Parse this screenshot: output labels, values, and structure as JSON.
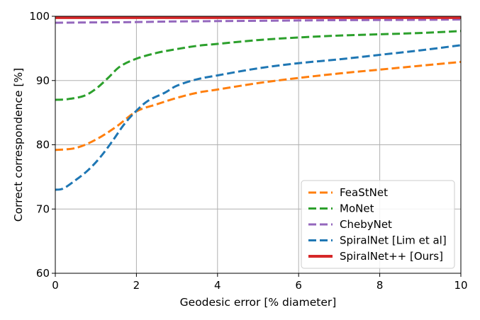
{
  "chart_data": {
    "type": "line",
    "xlabel": "Geodesic error [% diameter]",
    "ylabel": "Correct correspondence [%]",
    "xlim": [
      0,
      10
    ],
    "ylim": [
      60,
      100
    ],
    "xticks": [
      "0",
      "2",
      "4",
      "6",
      "8",
      "10"
    ],
    "yticks": [
      "60",
      "70",
      "80",
      "90",
      "100"
    ],
    "grid": true,
    "legend_position": "lower-right",
    "series": [
      {
        "name": "FeaStNet",
        "color": "#ff7f0e",
        "style": "dashed",
        "x": [
          0,
          0.5,
          1,
          1.5,
          2,
          2.5,
          3,
          3.5,
          4,
          5,
          6,
          7,
          8,
          9,
          10
        ],
        "y": [
          79.2,
          79.5,
          80.8,
          82.8,
          85.2,
          86.3,
          87.3,
          88.1,
          88.6,
          89.6,
          90.4,
          91.1,
          91.7,
          92.3,
          92.9
        ]
      },
      {
        "name": "MoNet",
        "color": "#2ca02c",
        "style": "dashed",
        "x": [
          0,
          0.3,
          0.7,
          1,
          1.3,
          1.6,
          2,
          2.5,
          3,
          3.5,
          4,
          5,
          6,
          7,
          8,
          9,
          10
        ],
        "y": [
          87,
          87.1,
          87.6,
          88.7,
          90.4,
          92.2,
          93.4,
          94.3,
          94.9,
          95.4,
          95.7,
          96.3,
          96.7,
          97.0,
          97.2,
          97.4,
          97.7
        ]
      },
      {
        "name": "ChebyNet",
        "color": "#9467bd",
        "style": "dashed",
        "x": [
          0,
          1,
          2,
          3,
          4,
          5,
          6,
          7,
          8,
          9,
          10
        ],
        "y": [
          99.0,
          99.05,
          99.1,
          99.2,
          99.25,
          99.3,
          99.35,
          99.4,
          99.42,
          99.45,
          99.5
        ]
      },
      {
        "name": "SpiralNet [Lim et al]",
        "color": "#1f77b4",
        "style": "dashed",
        "x": [
          0,
          0.2,
          0.5,
          0.8,
          1.1,
          1.4,
          1.7,
          2,
          2.3,
          2.7,
          3,
          3.5,
          4,
          5,
          6,
          7,
          8,
          9,
          10
        ],
        "y": [
          73,
          73.2,
          74.5,
          76,
          78,
          80.5,
          83.2,
          85.3,
          86.9,
          88.1,
          89.2,
          90.2,
          90.8,
          91.9,
          92.7,
          93.3,
          94.0,
          94.7,
          95.5
        ]
      },
      {
        "name": "SpiralNet++ [Ours]",
        "color": "#d62728",
        "style": "solid",
        "x": [
          0,
          10
        ],
        "y": [
          99.8,
          99.8
        ]
      }
    ]
  }
}
